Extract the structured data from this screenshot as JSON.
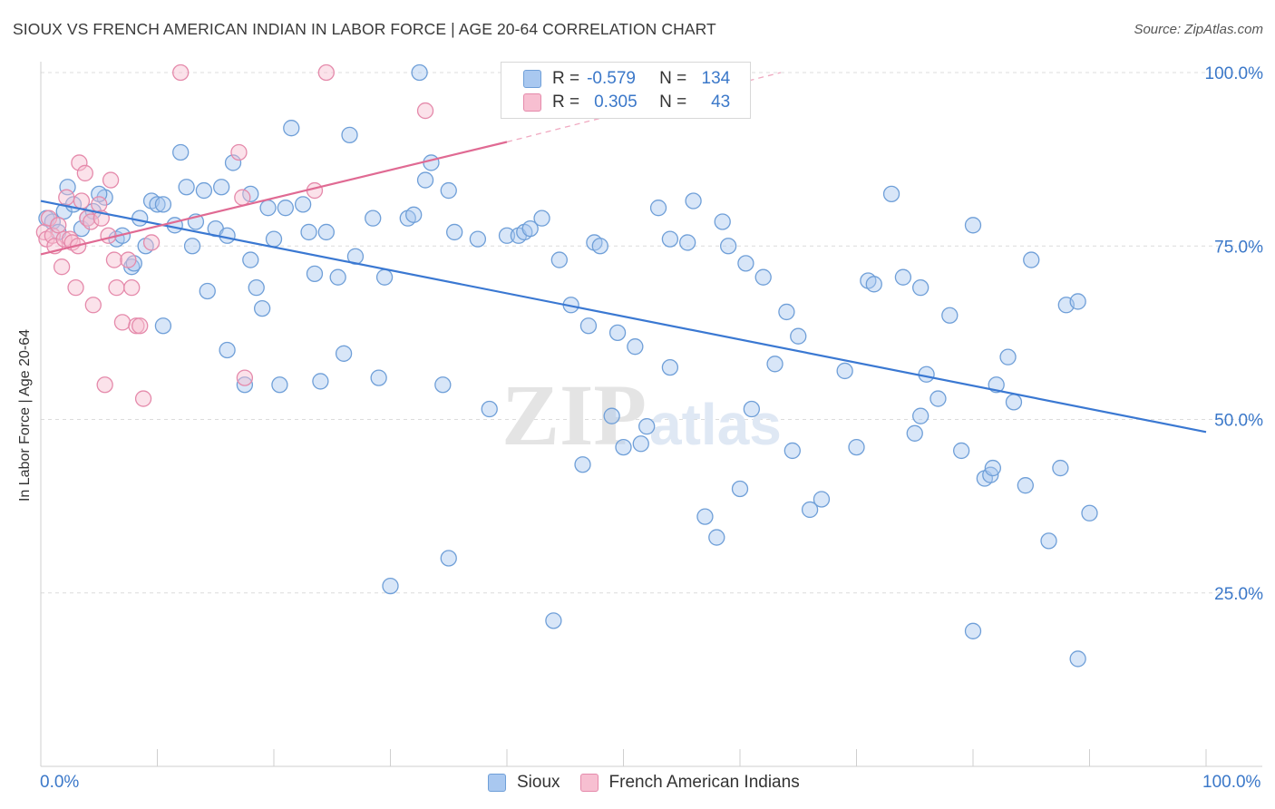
{
  "title": "SIOUX VS FRENCH AMERICAN INDIAN IN LABOR FORCE | AGE 20-64 CORRELATION CHART",
  "source": "Source: ZipAtlas.com",
  "watermark": {
    "zip": "ZIP",
    "atlas": "atlas"
  },
  "legend_top": [
    {
      "r_label": "R =",
      "r_value": "-0.579",
      "n_label": "N =",
      "n_value": "134",
      "color": "#a9c8f0",
      "border": "#6f9fd8"
    },
    {
      "r_label": "R =",
      "r_value": "0.305",
      "n_label": "N =",
      "n_value": "43",
      "color": "#f7bfd1",
      "border": "#e58aab"
    }
  ],
  "legend_bottom": [
    {
      "label": "Sioux",
      "color": "#a9c8f0",
      "border": "#6f9fd8"
    },
    {
      "label": "French American Indians",
      "color": "#f7bfd1",
      "border": "#e58aab"
    }
  ],
  "chart_data": {
    "type": "scatter",
    "title": "SIOUX VS FRENCH AMERICAN INDIAN IN LABOR FORCE | AGE 20-64 CORRELATION CHART",
    "xlabel": "",
    "ylabel": "In Labor Force | Age 20-64",
    "xlim": [
      0,
      100
    ],
    "ylim": [
      0,
      100
    ],
    "x_tick_labels": [
      "0.0%",
      "100.0%"
    ],
    "y_tick_labels": [
      {
        "value": 100,
        "label": "100.0%"
      },
      {
        "value": 75,
        "label": "75.0%"
      },
      {
        "value": 50,
        "label": "50.0%"
      },
      {
        "value": 25,
        "label": "25.0%"
      }
    ],
    "series": [
      {
        "name": "Sioux",
        "color": "#6f9fd8",
        "fill": "rgba(169,200,240,0.45)",
        "trend": {
          "x": [
            0,
            100
          ],
          "y": [
            81.5,
            48.2
          ],
          "color": "#3a78d2"
        },
        "points": [
          [
            0.5,
            79
          ],
          [
            1,
            78.5
          ],
          [
            1.5,
            77
          ],
          [
            2,
            80
          ],
          [
            2.3,
            83.5
          ],
          [
            2.8,
            81
          ],
          [
            3.5,
            77.5
          ],
          [
            4,
            79
          ],
          [
            4.5,
            80
          ],
          [
            5.5,
            82
          ],
          [
            5,
            82.5
          ],
          [
            6.5,
            76
          ],
          [
            7,
            76.5
          ],
          [
            7.8,
            72
          ],
          [
            8,
            72.5
          ],
          [
            8.5,
            79
          ],
          [
            9,
            75
          ],
          [
            9.5,
            81.5
          ],
          [
            10,
            81
          ],
          [
            10.5,
            81
          ],
          [
            10.5,
            63.5
          ],
          [
            11.5,
            78
          ],
          [
            12,
            88.5
          ],
          [
            12.5,
            83.5
          ],
          [
            13,
            75
          ],
          [
            13.3,
            78.5
          ],
          [
            14,
            83
          ],
          [
            14.3,
            68.5
          ],
          [
            15,
            77.5
          ],
          [
            15.5,
            83.5
          ],
          [
            16,
            76.5
          ],
          [
            16,
            60
          ],
          [
            16.5,
            87
          ],
          [
            17.5,
            55
          ],
          [
            18,
            82.5
          ],
          [
            18,
            73
          ],
          [
            18.5,
            69
          ],
          [
            19,
            66
          ],
          [
            19.5,
            80.5
          ],
          [
            20,
            76
          ],
          [
            20.5,
            55
          ],
          [
            21,
            80.5
          ],
          [
            21.5,
            92
          ],
          [
            22.5,
            81
          ],
          [
            23,
            77
          ],
          [
            23.5,
            71
          ],
          [
            24,
            55.5
          ],
          [
            24.5,
            77
          ],
          [
            25.5,
            70.5
          ],
          [
            26,
            59.5
          ],
          [
            26.5,
            91
          ],
          [
            27,
            73.5
          ],
          [
            28.5,
            79
          ],
          [
            29,
            56
          ],
          [
            29.5,
            70.5
          ],
          [
            30,
            26
          ],
          [
            31.5,
            79
          ],
          [
            32,
            79.5
          ],
          [
            32.5,
            100
          ],
          [
            33,
            84.5
          ],
          [
            33.5,
            87
          ],
          [
            34.5,
            55
          ],
          [
            35,
            83
          ],
          [
            35,
            30
          ],
          [
            35.5,
            77
          ],
          [
            37.5,
            76
          ],
          [
            38.5,
            51.5
          ],
          [
            40,
            76.5
          ],
          [
            41,
            76.5
          ],
          [
            41.5,
            77
          ],
          [
            42,
            77.5
          ],
          [
            43,
            79
          ],
          [
            44,
            21
          ],
          [
            44.5,
            73
          ],
          [
            45.5,
            66.5
          ],
          [
            46.5,
            43.5
          ],
          [
            47,
            63.5
          ],
          [
            47.5,
            75.5
          ],
          [
            48,
            75
          ],
          [
            49,
            50.5
          ],
          [
            49.5,
            62.5
          ],
          [
            50,
            46
          ],
          [
            51,
            60.5
          ],
          [
            51.5,
            46.5
          ],
          [
            52,
            49
          ],
          [
            53,
            80.5
          ],
          [
            54,
            76
          ],
          [
            54,
            57.5
          ],
          [
            55.5,
            75.5
          ],
          [
            56,
            81.5
          ],
          [
            57,
            36
          ],
          [
            58,
            33
          ],
          [
            58.5,
            78.5
          ],
          [
            59,
            75
          ],
          [
            60,
            40
          ],
          [
            60.5,
            72.5
          ],
          [
            61,
            51.5
          ],
          [
            62,
            70.5
          ],
          [
            63,
            58
          ],
          [
            64,
            65.5
          ],
          [
            64.5,
            45.5
          ],
          [
            65,
            62
          ],
          [
            66,
            37
          ],
          [
            67,
            38.5
          ],
          [
            69,
            57
          ],
          [
            70,
            46
          ],
          [
            71,
            70
          ],
          [
            71.5,
            69.5
          ],
          [
            73,
            82.5
          ],
          [
            74,
            70.5
          ],
          [
            75,
            48
          ],
          [
            75.5,
            50.5
          ],
          [
            75.5,
            69
          ],
          [
            76,
            56.5
          ],
          [
            77,
            53
          ],
          [
            78,
            65
          ],
          [
            79,
            45.5
          ],
          [
            80,
            78
          ],
          [
            80,
            19.5
          ],
          [
            81,
            41.5
          ],
          [
            81.5,
            42
          ],
          [
            81.7,
            43
          ],
          [
            82,
            55
          ],
          [
            83,
            59
          ],
          [
            83.5,
            52.5
          ],
          [
            84.5,
            40.5
          ],
          [
            85,
            73
          ],
          [
            86.5,
            32.5
          ],
          [
            87.5,
            43
          ],
          [
            88,
            66.5
          ],
          [
            89,
            15.5
          ],
          [
            89,
            67
          ],
          [
            90,
            36.5
          ]
        ]
      },
      {
        "name": "French American Indians",
        "color": "#e58aab",
        "fill": "rgba(247,191,209,0.45)",
        "trend": {
          "x": [
            0,
            40
          ],
          "y": [
            73.8,
            90
          ],
          "color": "#e06a93",
          "dashed_extension_to": [
            63.5,
            100
          ]
        },
        "points": [
          [
            0.3,
            77
          ],
          [
            0.5,
            76
          ],
          [
            0.7,
            79
          ],
          [
            1,
            76.5
          ],
          [
            1.2,
            75
          ],
          [
            1.5,
            78
          ],
          [
            1.8,
            72
          ],
          [
            2,
            76
          ],
          [
            2.2,
            82
          ],
          [
            2.5,
            76
          ],
          [
            2.7,
            75.5
          ],
          [
            3,
            69
          ],
          [
            3.2,
            75
          ],
          [
            3.3,
            87
          ],
          [
            3.5,
            81.5
          ],
          [
            3.8,
            85.5
          ],
          [
            4,
            79
          ],
          [
            4.3,
            78.5
          ],
          [
            4.5,
            66.5
          ],
          [
            5,
            81
          ],
          [
            5.2,
            79
          ],
          [
            5.5,
            55
          ],
          [
            5.8,
            76.5
          ],
          [
            6,
            84.5
          ],
          [
            6.3,
            73
          ],
          [
            6.5,
            69
          ],
          [
            7,
            64
          ],
          [
            7.5,
            73
          ],
          [
            7.8,
            69
          ],
          [
            8.2,
            63.5
          ],
          [
            8.5,
            63.5
          ],
          [
            8.8,
            53
          ],
          [
            9.5,
            75.5
          ],
          [
            12,
            100
          ],
          [
            17,
            88.5
          ],
          [
            17.3,
            82
          ],
          [
            17.5,
            56
          ],
          [
            23.5,
            83
          ],
          [
            24.5,
            100
          ],
          [
            33,
            94.5
          ]
        ]
      }
    ]
  }
}
